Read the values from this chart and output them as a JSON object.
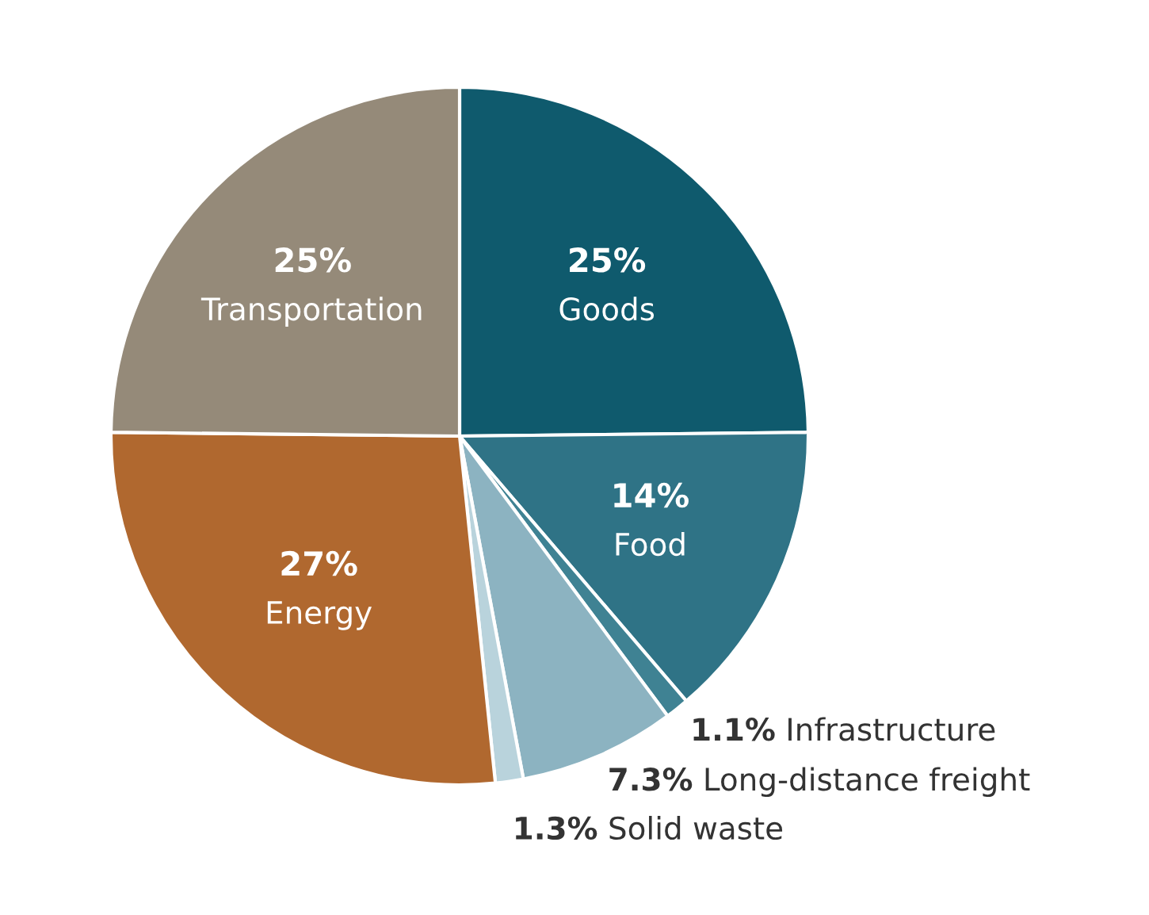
{
  "chart_data": {
    "type": "pie",
    "categories": [
      "Goods",
      "Food",
      "Infrastructure",
      "Long-distance freight",
      "Solid waste",
      "Energy",
      "Transportation"
    ],
    "values": [
      25,
      14,
      1.1,
      7.3,
      1.3,
      27,
      25
    ],
    "value_labels": [
      "25%",
      "14%",
      "1.1%",
      "7.3%",
      "1.3%",
      "27%",
      "25%"
    ],
    "colors": [
      "#0f5a6d",
      "#2f7386",
      "#3f8293",
      "#8cb3c1",
      "#b9d3dc",
      "#b0682f",
      "#958a79"
    ],
    "legend": false
  }
}
